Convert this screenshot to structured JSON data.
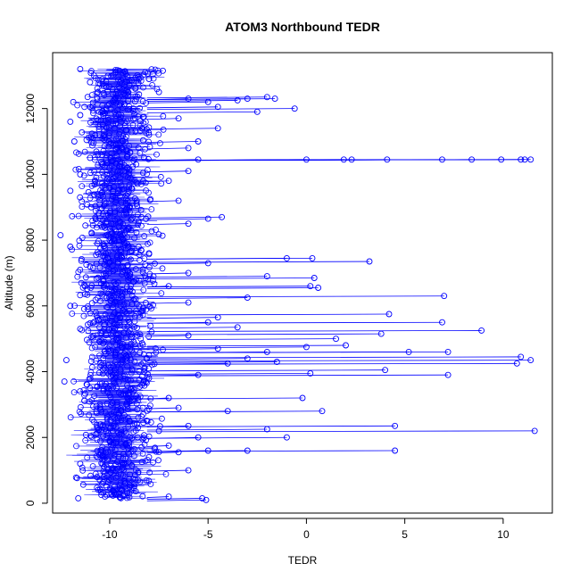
{
  "chart_data": {
    "type": "line",
    "title": "ATOM3 Northbound TEDR",
    "xlabel": "TEDR",
    "ylabel": "Altitude (m)",
    "xlim": [
      -12.9,
      12.5
    ],
    "ylim": [
      -300,
      13700
    ],
    "x_ticks": [
      -10,
      -5,
      0,
      5,
      10
    ],
    "y_ticks": [
      0,
      2000,
      4000,
      6000,
      8000,
      10000,
      12000
    ],
    "grid": false,
    "legend": "none",
    "series": [
      {
        "color": "#0000ff",
        "marker": "open-circle",
        "note_core_cloud": {
          "x_center": -9.6,
          "x_spread": 2.2,
          "y_range": [
            150,
            13200
          ]
        },
        "points": [
          [
            -11.6,
            150
          ],
          [
            -9.0,
            300
          ],
          [
            -7.0,
            200
          ],
          [
            -5.1,
            100
          ],
          [
            -5.3,
            150
          ],
          [
            -10.5,
            700
          ],
          [
            -6.0,
            1000
          ],
          [
            -11.5,
            1200
          ],
          [
            -8.0,
            1400
          ],
          [
            -6.5,
            1550
          ],
          [
            -5.0,
            1600
          ],
          [
            -3.0,
            1600
          ],
          [
            4.5,
            1600
          ],
          [
            -7.0,
            1750
          ],
          [
            -10.0,
            1900
          ],
          [
            -5.5,
            2000
          ],
          [
            -1.0,
            2000
          ],
          [
            -7.5,
            2200
          ],
          [
            11.6,
            2200
          ],
          [
            -2.0,
            2250
          ],
          [
            -6.0,
            2350
          ],
          [
            4.5,
            2350
          ],
          [
            -9.0,
            2500
          ],
          [
            -4.0,
            2800
          ],
          [
            0.8,
            2800
          ],
          [
            -6.5,
            2900
          ],
          [
            -10.5,
            3000
          ],
          [
            -7.0,
            3200
          ],
          [
            -0.2,
            3200
          ],
          [
            -11.0,
            3500
          ],
          [
            -12.3,
            3700
          ],
          [
            -8.0,
            3800
          ],
          [
            -5.5,
            3900
          ],
          [
            0.2,
            3950
          ],
          [
            7.2,
            3900
          ],
          [
            4.0,
            4050
          ],
          [
            -4.0,
            4250
          ],
          [
            -1.5,
            4300
          ],
          [
            10.7,
            4250
          ],
          [
            11.4,
            4350
          ],
          [
            -3.0,
            4400
          ],
          [
            -12.2,
            4350
          ],
          [
            10.9,
            4450
          ],
          [
            -8.0,
            4500
          ],
          [
            5.2,
            4600
          ],
          [
            7.2,
            4600
          ],
          [
            -2.0,
            4600
          ],
          [
            -4.5,
            4700
          ],
          [
            0.0,
            4750
          ],
          [
            2.0,
            4800
          ],
          [
            -10.5,
            4900
          ],
          [
            1.5,
            5000
          ],
          [
            -6.0,
            5100
          ],
          [
            3.8,
            5150
          ],
          [
            8.9,
            5250
          ],
          [
            -3.5,
            5350
          ],
          [
            -11.5,
            5300
          ],
          [
            -5.0,
            5500
          ],
          [
            6.9,
            5500
          ],
          [
            -4.5,
            5650
          ],
          [
            4.2,
            5750
          ],
          [
            -9.0,
            5850
          ],
          [
            -12.0,
            6000
          ],
          [
            -6.0,
            6100
          ],
          [
            -3.0,
            6250
          ],
          [
            7.0,
            6300
          ],
          [
            0.6,
            6550
          ],
          [
            -7.0,
            6600
          ],
          [
            0.2,
            6600
          ],
          [
            -2.0,
            6900
          ],
          [
            0.4,
            6850
          ],
          [
            -6.0,
            7000
          ],
          [
            -11.0,
            7200
          ],
          [
            -5.0,
            7300
          ],
          [
            3.2,
            7350
          ],
          [
            -1.0,
            7450
          ],
          [
            0.3,
            7450
          ],
          [
            -8.0,
            7600
          ],
          [
            -12.0,
            7800
          ],
          [
            -10.0,
            8000
          ],
          [
            -12.5,
            8150
          ],
          [
            -6.0,
            8500
          ],
          [
            -5.0,
            8650
          ],
          [
            -4.3,
            8700
          ],
          [
            -9.0,
            9000
          ],
          [
            -6.5,
            9200
          ],
          [
            -12.0,
            9500
          ],
          [
            -7.0,
            9800
          ],
          [
            -11.5,
            10000
          ],
          [
            -6.0,
            10100
          ],
          [
            -5.5,
            10450
          ],
          [
            0.0,
            10450
          ],
          [
            1.9,
            10450
          ],
          [
            2.3,
            10450
          ],
          [
            4.1,
            10450
          ],
          [
            6.9,
            10450
          ],
          [
            8.4,
            10450
          ],
          [
            9.9,
            10450
          ],
          [
            10.9,
            10450
          ],
          [
            11.1,
            10450
          ],
          [
            11.4,
            10450
          ],
          [
            -11.0,
            10500
          ],
          [
            -6.0,
            10800
          ],
          [
            -11.8,
            11000
          ],
          [
            -5.5,
            11000
          ],
          [
            -8.0,
            11200
          ],
          [
            -4.5,
            11400
          ],
          [
            -12.0,
            11600
          ],
          [
            -6.5,
            11700
          ],
          [
            -2.5,
            11900
          ],
          [
            -11.5,
            11800
          ],
          [
            -4.5,
            12050
          ],
          [
            -0.6,
            12000
          ],
          [
            -5.0,
            12200
          ],
          [
            -6.0,
            12300
          ],
          [
            -3.5,
            12250
          ],
          [
            -3.0,
            12300
          ],
          [
            -2.0,
            12350
          ],
          [
            -1.6,
            12300
          ],
          [
            -7.5,
            12500
          ],
          [
            -11.0,
            12800
          ],
          [
            -8.0,
            12900
          ],
          [
            -9.5,
            13150
          ],
          [
            -7.3,
            13150
          ],
          [
            -11.5,
            13200
          ]
        ]
      }
    ]
  }
}
